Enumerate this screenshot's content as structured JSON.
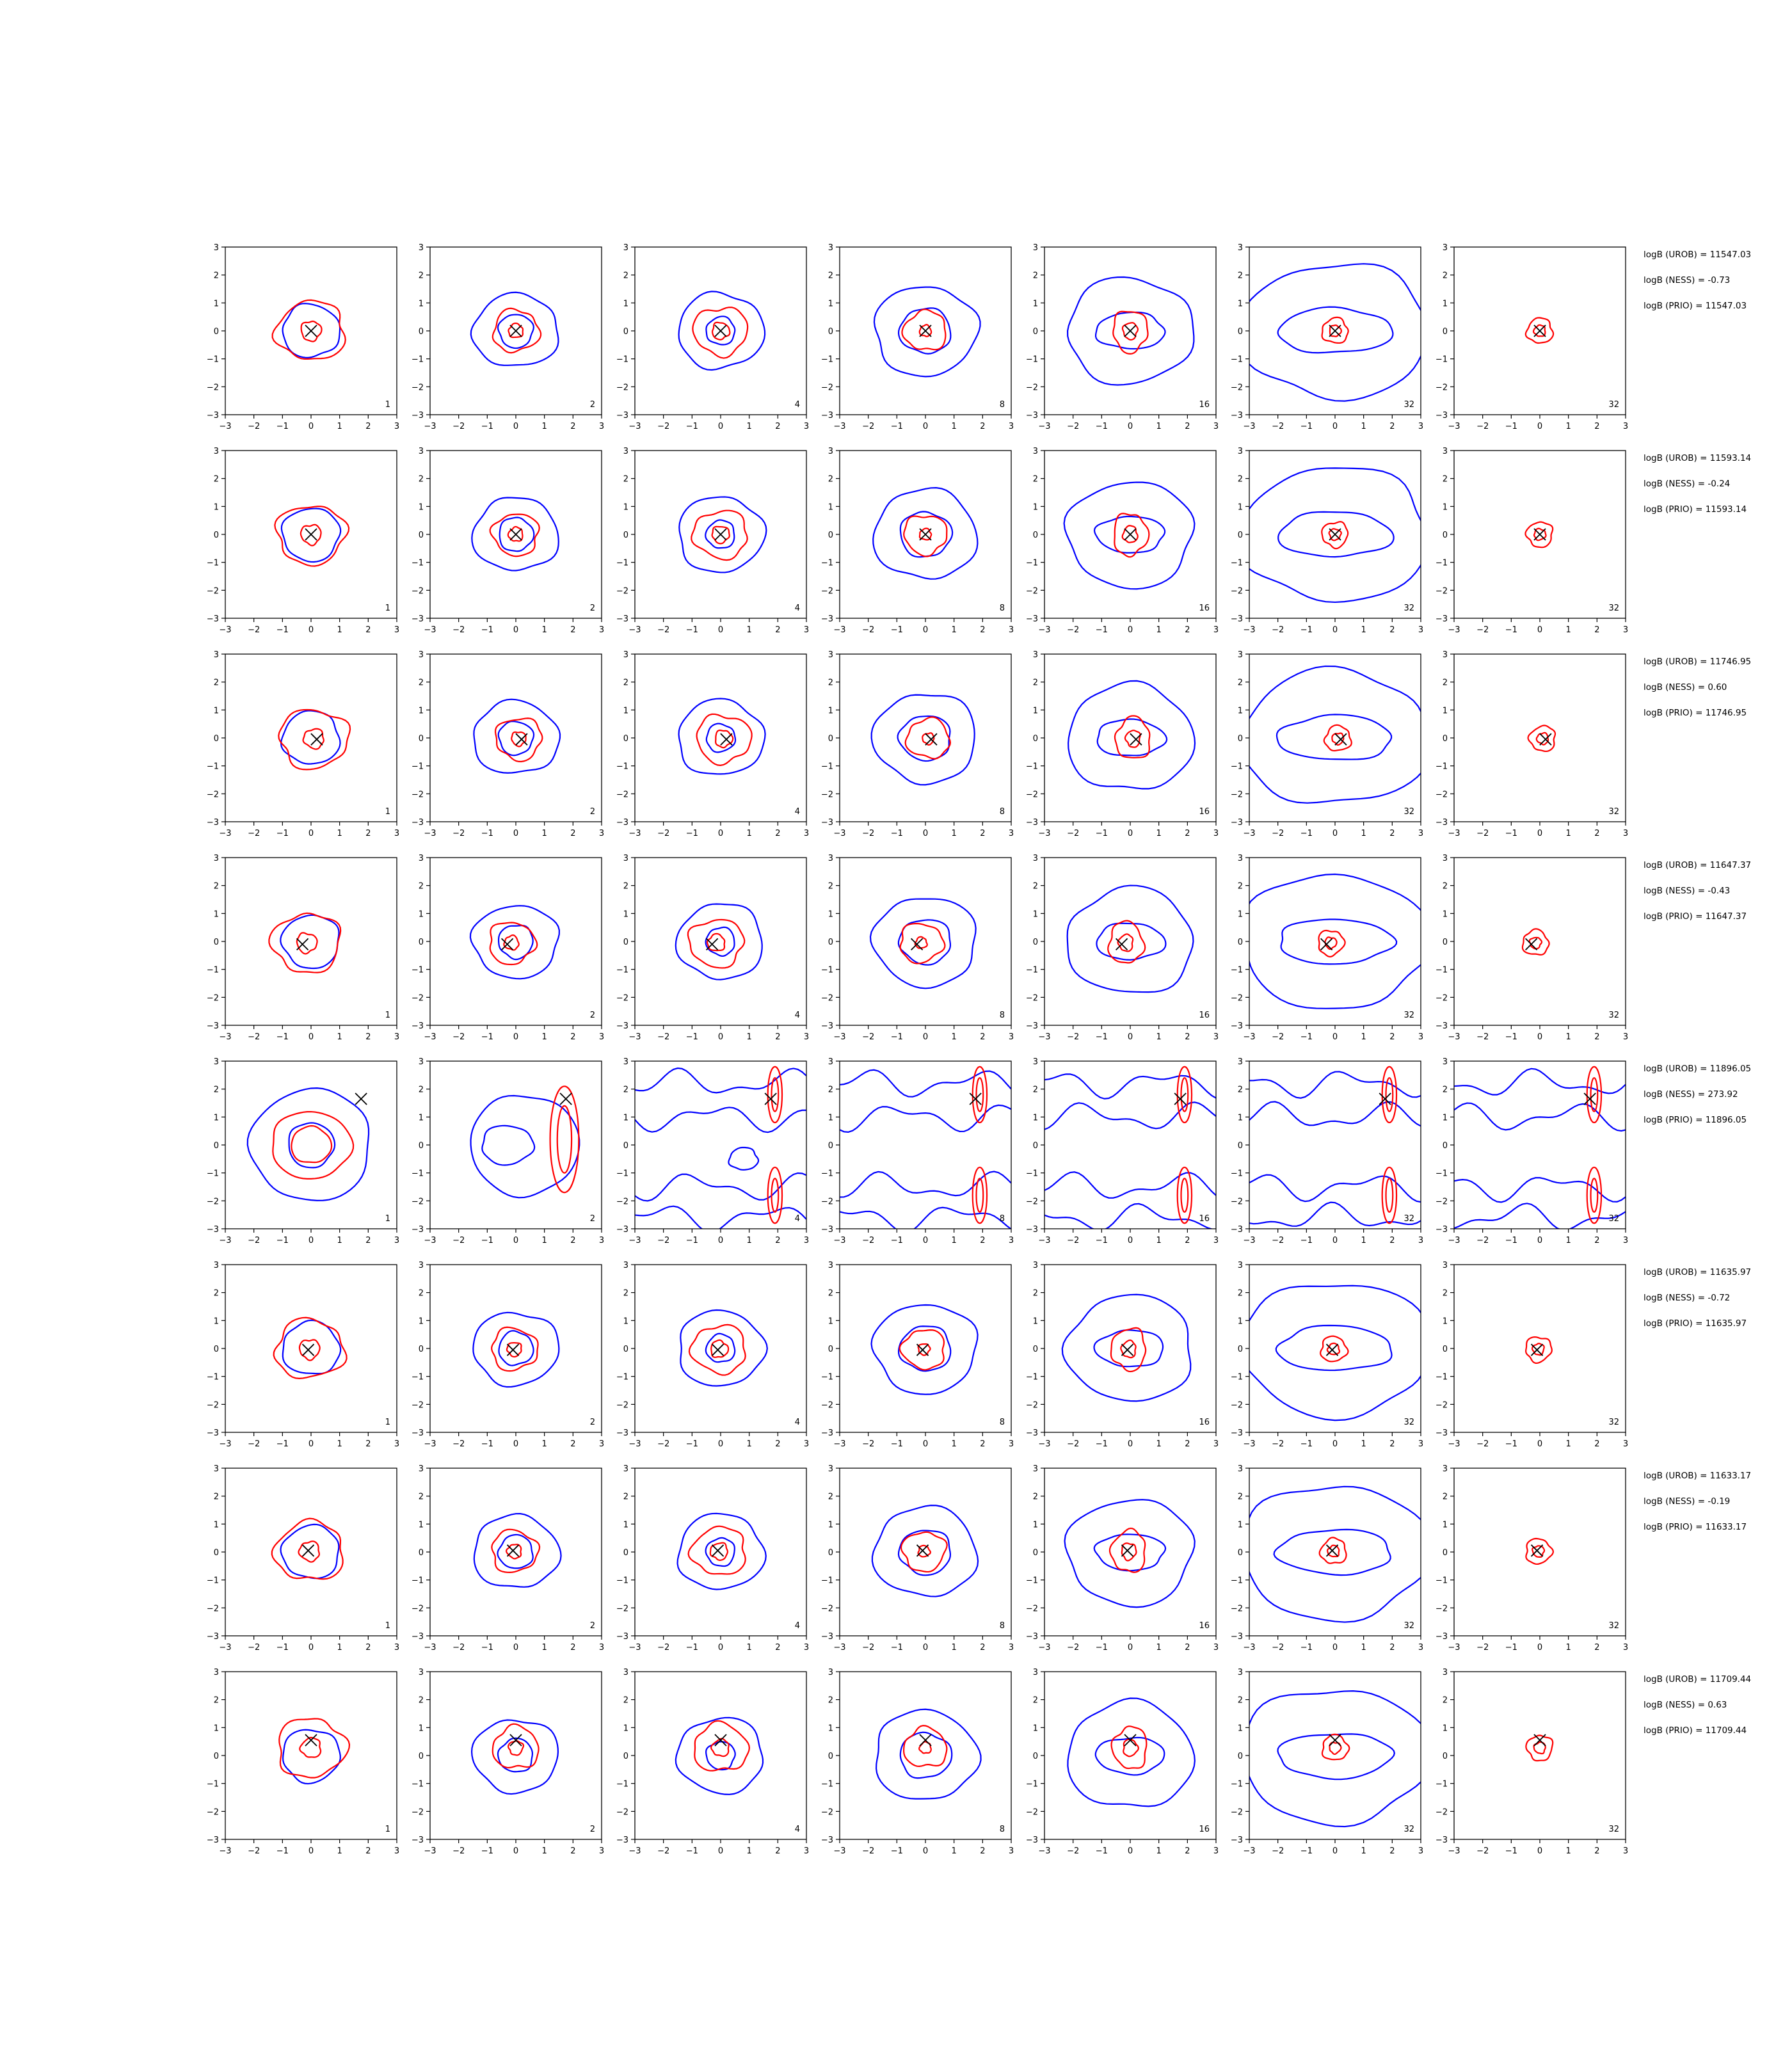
{
  "chart_data": {
    "type": "contour-grid",
    "xlim": [
      -3,
      3
    ],
    "ylim": [
      -3,
      3
    ],
    "ticks": [
      -3,
      -2,
      -1,
      0,
      1,
      2,
      3
    ],
    "grid": false,
    "colors": {
      "red": "#ff0000",
      "blue": "#0000ff",
      "marker": "#000000"
    },
    "columns": [
      {
        "label": "1"
      },
      {
        "label": "2"
      },
      {
        "label": "4"
      },
      {
        "label": "8"
      },
      {
        "label": "16"
      },
      {
        "label": "32"
      },
      {
        "label": "32"
      }
    ],
    "rows": [
      {
        "marker": [
          0.0,
          0.0
        ],
        "stats": [
          "logB (UROB) = 11547.03",
          "logB (NESS) = -0.73",
          "logB (PRIO) = 11547.03"
        ]
      },
      {
        "marker": [
          0.0,
          0.0
        ],
        "stats": [
          "logB (UROB) = 11593.14",
          "logB (NESS) = -0.24",
          "logB (PRIO) = 11593.14"
        ]
      },
      {
        "marker": [
          0.2,
          -0.05
        ],
        "stats": [
          "logB (UROB) = 11746.95",
          "logB (NESS) = 0.60",
          "logB (PRIO) = 11746.95"
        ]
      },
      {
        "marker": [
          -0.3,
          -0.1
        ],
        "stats": [
          "logB (UROB) = 11647.37",
          "logB (NESS) = -0.43",
          "logB (PRIO) = 11647.37"
        ]
      },
      {
        "marker": [
          1.75,
          1.65
        ],
        "stats": [
          "logB (UROB) = 11896.05",
          "logB (NESS) = 273.92",
          "logB (PRIO) = 11896.05"
        ]
      },
      {
        "marker": [
          -0.1,
          -0.05
        ],
        "stats": [
          "logB (UROB) = 11635.97",
          "logB (NESS) = -0.72",
          "logB (PRIO) = 11635.97"
        ]
      },
      {
        "marker": [
          -0.1,
          0.05
        ],
        "stats": [
          "logB (UROB) = 11633.17",
          "logB (NESS) = -0.19",
          "logB (PRIO) = 11633.17"
        ]
      },
      {
        "marker": [
          0.0,
          0.55
        ],
        "stats": [
          "logB (UROB) = 11709.44",
          "logB (NESS) = 0.63",
          "logB (PRIO) = 11709.44"
        ]
      }
    ]
  }
}
